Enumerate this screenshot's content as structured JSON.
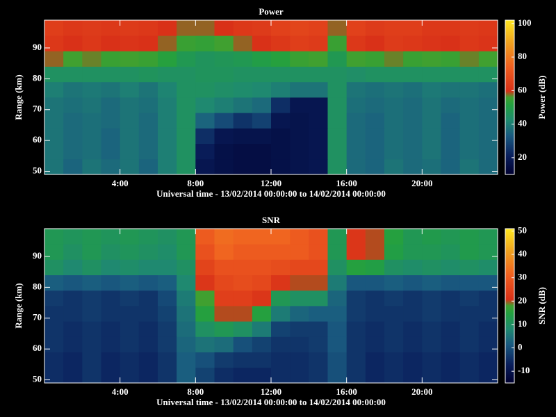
{
  "chart_data": [
    {
      "type": "heatmap",
      "title": "Power",
      "xlabel": "Universal time - 13/02/2014 00:00:00 to 14/02/2014 00:00:00",
      "ylabel": "Range (km)",
      "colorbar_label": "Power (dB)",
      "xbins": [
        0,
        1,
        2,
        3,
        4,
        5,
        6,
        7,
        8,
        9,
        10,
        11,
        12,
        13,
        14,
        15,
        16,
        17,
        18,
        19,
        20,
        21,
        22,
        23,
        24
      ],
      "ybins": [
        49,
        54,
        59,
        64,
        69,
        74,
        79,
        84,
        89,
        94,
        99
      ],
      "values": [
        [
          38,
          35,
          38,
          36,
          38,
          35,
          40,
          45,
          18,
          16,
          15,
          15,
          16,
          17,
          18,
          45,
          36,
          35,
          38,
          36,
          37,
          35,
          38,
          36
        ],
        [
          38,
          36,
          37,
          35,
          38,
          36,
          40,
          45,
          20,
          16,
          15,
          15,
          16,
          17,
          18,
          45,
          36,
          35,
          37,
          36,
          38,
          35,
          37,
          36
        ],
        [
          38,
          36,
          37,
          35,
          38,
          36,
          40,
          45,
          24,
          18,
          17,
          17,
          16,
          17,
          18,
          45,
          36,
          35,
          37,
          36,
          38,
          35,
          37,
          36
        ],
        [
          38,
          36,
          37,
          36,
          38,
          36,
          40,
          45,
          35,
          30,
          25,
          28,
          18,
          17,
          18,
          45,
          36,
          35,
          37,
          36,
          38,
          35,
          37,
          36
        ],
        [
          38,
          37,
          38,
          36,
          38,
          37,
          40,
          45,
          42,
          40,
          38,
          36,
          24,
          18,
          18,
          45,
          37,
          36,
          37,
          36,
          38,
          36,
          37,
          36
        ],
        [
          40,
          38,
          39,
          38,
          40,
          38,
          41,
          45,
          45,
          44,
          43,
          42,
          40,
          38,
          38,
          45,
          38,
          37,
          38,
          37,
          39,
          38,
          38,
          37
        ],
        [
          45,
          45,
          45,
          45,
          45,
          46,
          45,
          45,
          46,
          46,
          45,
          45,
          45,
          45,
          45,
          45,
          44,
          45,
          45,
          45,
          45,
          45,
          45,
          45
        ],
        [
          58,
          56,
          57,
          55,
          56,
          55,
          52,
          48,
          46,
          47,
          48,
          50,
          52,
          55,
          56,
          48,
          56,
          55,
          57,
          55,
          56,
          55,
          57,
          56
        ],
        [
          62,
          60,
          62,
          60,
          61,
          60,
          58,
          55,
          54,
          56,
          58,
          60,
          62,
          64,
          63,
          55,
          62,
          60,
          63,
          62,
          61,
          60,
          62,
          61
        ],
        [
          64,
          62,
          63,
          62,
          63,
          62,
          60,
          58,
          58,
          60,
          62,
          63,
          65,
          66,
          65,
          58,
          65,
          63,
          64,
          64,
          62,
          62,
          63,
          62
        ]
      ],
      "xlim": [
        0,
        24
      ],
      "ylim": [
        49,
        99
      ],
      "xticks": [
        {
          "value": 4,
          "label": "4:00"
        },
        {
          "value": 8,
          "label": "8:00"
        },
        {
          "value": 12,
          "label": "12:00"
        },
        {
          "value": 16,
          "label": "16:00"
        },
        {
          "value": 20,
          "label": "20:00"
        }
      ],
      "yticks": [
        50,
        60,
        70,
        80,
        90
      ],
      "clim": [
        10,
        102
      ],
      "cticks": [
        20,
        40,
        60,
        80,
        100
      ],
      "colormap": [
        {
          "stop": 0,
          "color": "#000030"
        },
        {
          "stop": 0.12,
          "color": "#0a1f5c"
        },
        {
          "stop": 0.25,
          "color": "#1a5a80"
        },
        {
          "stop": 0.35,
          "color": "#1f8a70"
        },
        {
          "stop": 0.45,
          "color": "#22a040"
        },
        {
          "stop": 0.5,
          "color": "#40a030"
        },
        {
          "stop": 0.54,
          "color": "#d83018"
        },
        {
          "stop": 0.7,
          "color": "#f06020"
        },
        {
          "stop": 0.85,
          "color": "#f0a020"
        },
        {
          "stop": 1,
          "color": "#ffe820"
        }
      ]
    },
    {
      "type": "heatmap",
      "title": "SNR",
      "xlabel": "Universal time - 13/02/2014 00:00:00 to 14/02/2014 00:00:00",
      "ylabel": "Range (km)",
      "colorbar_label": "SNR (dB)",
      "xbins": [
        0,
        1,
        2,
        3,
        4,
        5,
        6,
        7,
        8,
        9,
        10,
        11,
        12,
        13,
        14,
        15,
        16,
        17,
        18,
        19,
        20,
        21,
        22,
        23,
        24
      ],
      "ybins": [
        49,
        54,
        59,
        64,
        69,
        74,
        79,
        84,
        89,
        94,
        99
      ],
      "values": [
        [
          -5,
          -6,
          -4,
          -6,
          -5,
          -6,
          -4,
          2,
          -2,
          -5,
          -6,
          -6,
          -5,
          -5,
          -4,
          0,
          -4,
          -6,
          -5,
          -6,
          -5,
          -6,
          -5,
          -6
        ],
        [
          -5,
          -6,
          -4,
          -6,
          -5,
          -6,
          -4,
          2,
          0,
          -3,
          -4,
          -4,
          -5,
          -5,
          -4,
          0,
          -4,
          -6,
          -5,
          -6,
          -5,
          -6,
          -5,
          -6
        ],
        [
          -4,
          -5,
          -4,
          -5,
          -4,
          -5,
          -3,
          3,
          5,
          4,
          0,
          -2,
          -4,
          -4,
          -3,
          1,
          -4,
          -5,
          -4,
          -5,
          -4,
          -5,
          -4,
          -5
        ],
        [
          -4,
          -5,
          -4,
          -5,
          -4,
          -5,
          -3,
          4,
          10,
          12,
          10,
          6,
          -2,
          -3,
          -3,
          1,
          -4,
          -5,
          -4,
          -5,
          -4,
          -5,
          -4,
          -5
        ],
        [
          -4,
          -4,
          -3,
          -4,
          -4,
          -4,
          -2,
          5,
          15,
          20,
          20,
          15,
          6,
          3,
          2,
          2,
          -3,
          -4,
          -4,
          -4,
          -3,
          -4,
          -4,
          -4
        ],
        [
          -3,
          -4,
          -3,
          -4,
          -3,
          -4,
          -1,
          6,
          18,
          24,
          24,
          22,
          12,
          10,
          10,
          3,
          -3,
          -4,
          -3,
          -4,
          -3,
          -4,
          -3,
          -4
        ],
        [
          2,
          1,
          2,
          1,
          2,
          1,
          2,
          8,
          22,
          26,
          27,
          26,
          22,
          20,
          20,
          6,
          1,
          1,
          2,
          1,
          2,
          1,
          1,
          1
        ],
        [
          10,
          8,
          10,
          8,
          9,
          8,
          8,
          10,
          25,
          28,
          28,
          28,
          27,
          26,
          26,
          10,
          15,
          14,
          10,
          9,
          10,
          9,
          10,
          9
        ],
        [
          12,
          10,
          12,
          10,
          11,
          10,
          9,
          12,
          28,
          32,
          30,
          30,
          30,
          30,
          28,
          12,
          22,
          20,
          14,
          12,
          12,
          11,
          13,
          12
        ],
        [
          12,
          11,
          12,
          11,
          12,
          11,
          10,
          12,
          30,
          33,
          32,
          32,
          32,
          30,
          28,
          12,
          22,
          20,
          15,
          12,
          13,
          12,
          13,
          12
        ]
      ],
      "xlim": [
        0,
        24
      ],
      "ylim": [
        49,
        99
      ],
      "xticks": [
        {
          "value": 4,
          "label": "4:00"
        },
        {
          "value": 8,
          "label": "8:00"
        },
        {
          "value": 12,
          "label": "12:00"
        },
        {
          "value": 16,
          "label": "16:00"
        },
        {
          "value": 20,
          "label": "20:00"
        }
      ],
      "yticks": [
        50,
        60,
        70,
        80,
        90
      ],
      "clim": [
        -15,
        51
      ],
      "cticks": [
        -10,
        0,
        10,
        20,
        30,
        40,
        50
      ],
      "colormap": [
        {
          "stop": 0,
          "color": "#000030"
        },
        {
          "stop": 0.12,
          "color": "#0a1f5c"
        },
        {
          "stop": 0.25,
          "color": "#1a5a80"
        },
        {
          "stop": 0.35,
          "color": "#1f8a70"
        },
        {
          "stop": 0.45,
          "color": "#22a040"
        },
        {
          "stop": 0.5,
          "color": "#40a030"
        },
        {
          "stop": 0.54,
          "color": "#d83018"
        },
        {
          "stop": 0.7,
          "color": "#f06020"
        },
        {
          "stop": 0.85,
          "color": "#f0a020"
        },
        {
          "stop": 1,
          "color": "#ffe820"
        }
      ]
    }
  ]
}
